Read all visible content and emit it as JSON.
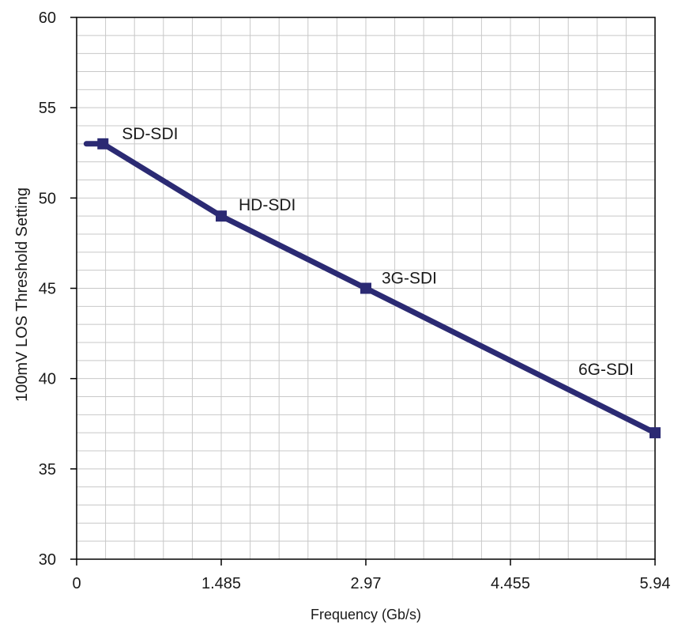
{
  "chart_data": {
    "type": "line",
    "title": "",
    "xlabel": "Frequency (Gb/s)",
    "ylabel": "100mV LOS Threshold Setting",
    "xlim": [
      0,
      5.94
    ],
    "ylim": [
      30,
      60
    ],
    "x_ticks": [
      0,
      1.485,
      2.97,
      4.455,
      5.94
    ],
    "x_tick_labels": [
      "0",
      "1.485",
      "2.97",
      "4.455",
      "5.94"
    ],
    "y_ticks": [
      30,
      35,
      40,
      45,
      50,
      55,
      60
    ],
    "y_tick_labels": [
      "30",
      "35",
      "40",
      "45",
      "50",
      "55",
      "60"
    ],
    "grid": true,
    "line_start": {
      "x": 0.1,
      "y": 53
    },
    "series": [
      {
        "points": [
          {
            "x": 0.27,
            "y": 53,
            "label": "SD-SDI"
          },
          {
            "x": 1.485,
            "y": 49,
            "label": "HD-SDI"
          },
          {
            "x": 2.97,
            "y": 45,
            "label": "3G-SDI"
          },
          {
            "x": 5.94,
            "y": 37,
            "label": "6G-SDI"
          }
        ]
      }
    ]
  },
  "colors": {
    "series": "#2b2a73",
    "grid": "#c8c8c8",
    "axis": "#000000"
  }
}
